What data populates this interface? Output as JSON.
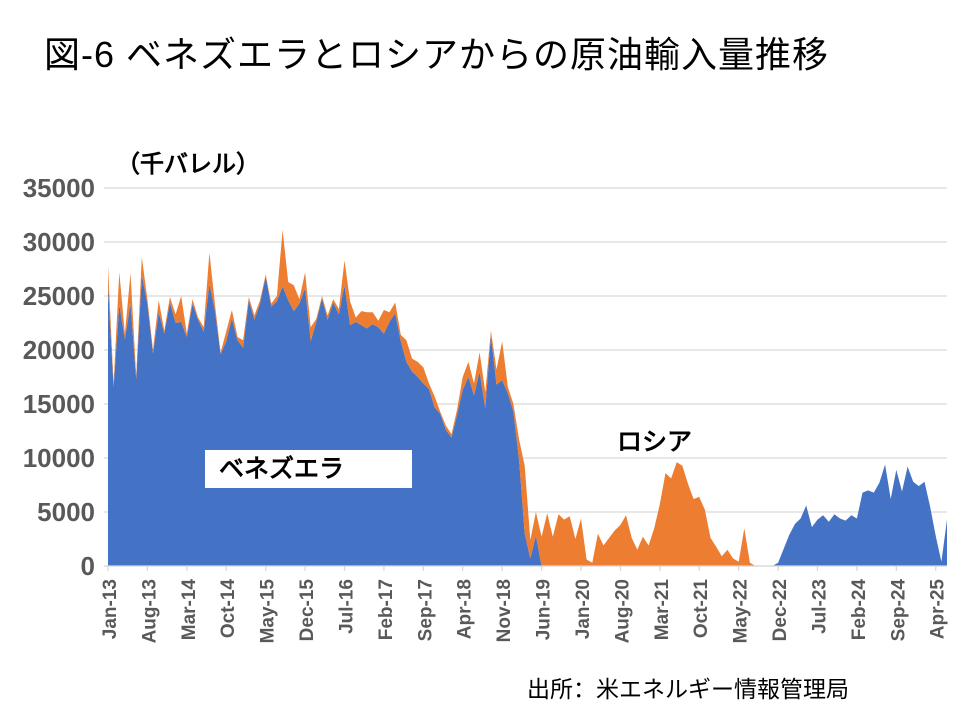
{
  "title": "図-6 ベネズエラとロシアからの原油輸入量推移",
  "unit_label": "（千バレル）",
  "source": "出所：米エネルギー情報管理局",
  "series_labels": {
    "venezuela": "ベネズエラ",
    "russia": "ロシア"
  },
  "colors": {
    "venezuela": "#4472C4",
    "russia": "#ED7D31",
    "grid": "#D9D9D9",
    "axis_text": "#595959",
    "title_text": "#000000"
  },
  "chart_data": {
    "type": "area",
    "stacked": true,
    "title": "図-6 ベネズエラとロシアからの原油輸入量推移",
    "ylabel": "（千バレル）",
    "ylim": [
      0,
      35000
    ],
    "y_tick_step": 5000,
    "grid": true,
    "legend_position": "inline-labels",
    "x_tick_every": 7,
    "x": [
      "Jan-13",
      "Feb-13",
      "Mar-13",
      "Apr-13",
      "May-13",
      "Jun-13",
      "Jul-13",
      "Aug-13",
      "Sep-13",
      "Oct-13",
      "Nov-13",
      "Dec-13",
      "Jan-14",
      "Feb-14",
      "Mar-14",
      "Apr-14",
      "May-14",
      "Jun-14",
      "Jul-14",
      "Aug-14",
      "Sep-14",
      "Oct-14",
      "Nov-14",
      "Dec-14",
      "Jan-15",
      "Feb-15",
      "Mar-15",
      "Apr-15",
      "May-15",
      "Jun-15",
      "Jul-15",
      "Aug-15",
      "Sep-15",
      "Oct-15",
      "Nov-15",
      "Dec-15",
      "Jan-16",
      "Feb-16",
      "Mar-16",
      "Apr-16",
      "May-16",
      "Jun-16",
      "Jul-16",
      "Aug-16",
      "Sep-16",
      "Oct-16",
      "Nov-16",
      "Dec-16",
      "Jan-17",
      "Feb-17",
      "Mar-17",
      "Apr-17",
      "May-17",
      "Jun-17",
      "Jul-17",
      "Aug-17",
      "Sep-17",
      "Oct-17",
      "Nov-17",
      "Dec-17",
      "Jan-18",
      "Feb-18",
      "Mar-18",
      "Apr-18",
      "May-18",
      "Jun-18",
      "Jul-18",
      "Aug-18",
      "Sep-18",
      "Oct-18",
      "Nov-18",
      "Dec-18",
      "Jan-19",
      "Feb-19",
      "Mar-19",
      "Apr-19",
      "May-19",
      "Jun-19",
      "Jul-19",
      "Aug-19",
      "Sep-19",
      "Oct-19",
      "Nov-19",
      "Dec-19",
      "Jan-20",
      "Feb-20",
      "Mar-20",
      "Apr-20",
      "May-20",
      "Jun-20",
      "Jul-20",
      "Aug-20",
      "Sep-20",
      "Oct-20",
      "Nov-20",
      "Dec-20",
      "Jan-21",
      "Feb-21",
      "Mar-21",
      "Apr-21",
      "May-21",
      "Jun-21",
      "Jul-21",
      "Aug-21",
      "Sep-21",
      "Oct-21",
      "Nov-21",
      "Dec-21",
      "Jan-22",
      "Feb-22",
      "Mar-22",
      "Apr-22",
      "May-22",
      "Jun-22",
      "Jul-22",
      "Aug-22",
      "Sep-22",
      "Oct-22",
      "Nov-22",
      "Dec-22",
      "Jan-23",
      "Feb-23",
      "Mar-23",
      "Apr-23",
      "May-23",
      "Jun-23",
      "Jul-23",
      "Aug-23",
      "Sep-23",
      "Oct-23",
      "Nov-23",
      "Dec-23",
      "Jan-24",
      "Feb-24",
      "Mar-24",
      "Apr-24",
      "May-24",
      "Jun-24",
      "Jul-24",
      "Aug-24",
      "Sep-24",
      "Oct-24",
      "Nov-24",
      "Dec-24",
      "Jan-25",
      "Feb-25",
      "Mar-25",
      "Apr-25",
      "May-25",
      "Jun-25"
    ],
    "series": [
      {
        "name": "ベネズエラ",
        "color": "#4472C4",
        "values": [
          25900,
          16600,
          24200,
          21000,
          24300,
          17300,
          26900,
          24300,
          19700,
          23500,
          21500,
          24400,
          22500,
          22600,
          21200,
          24300,
          22800,
          21700,
          26100,
          23600,
          19600,
          20800,
          22900,
          20900,
          20200,
          24600,
          22800,
          24300,
          26800,
          24000,
          24500,
          25900,
          24600,
          23600,
          24300,
          25700,
          20800,
          22600,
          24800,
          22800,
          24400,
          23300,
          26000,
          22300,
          22600,
          22300,
          22000,
          22400,
          22100,
          21500,
          22600,
          23400,
          20800,
          18900,
          18000,
          17500,
          16900,
          16400,
          14700,
          14100,
          12600,
          11900,
          14000,
          16300,
          17500,
          15800,
          18000,
          14600,
          21400,
          16800,
          17200,
          16000,
          14300,
          9800,
          3000,
          700,
          2800,
          0,
          0,
          0,
          0,
          0,
          0,
          0,
          0,
          0,
          0,
          0,
          0,
          0,
          0,
          0,
          0,
          0,
          0,
          0,
          0,
          0,
          0,
          0,
          0,
          0,
          0,
          0,
          0,
          0,
          0,
          0,
          0,
          0,
          0,
          0,
          0,
          0,
          0,
          0,
          0,
          0,
          0,
          300,
          1600,
          2900,
          3900,
          4400,
          5600,
          3600,
          4300,
          4700,
          4100,
          4800,
          4400,
          4200,
          4700,
          4400,
          6800,
          7000,
          6800,
          7700,
          9400,
          6200,
          8900,
          6900,
          9200,
          7800,
          7400,
          7800,
          5500,
          2800,
          400,
          4300
        ]
      },
      {
        "name": "ロシア",
        "color": "#ED7D31",
        "values": [
          1900,
          300,
          3000,
          500,
          2800,
          300,
          1700,
          400,
          300,
          1100,
          300,
          500,
          800,
          2400,
          300,
          400,
          200,
          400,
          2900,
          600,
          200,
          900,
          800,
          300,
          700,
          300,
          400,
          300,
          200,
          300,
          500,
          5200,
          1700,
          2400,
          400,
          1500,
          1300,
          300,
          200,
          400,
          300,
          500,
          2300,
          2200,
          400,
          1300,
          1500,
          1100,
          600,
          2200,
          900,
          1000,
          600,
          2000,
          1200,
          1400,
          1500,
          500,
          1000,
          200,
          400,
          300,
          500,
          1200,
          1400,
          1100,
          1800,
          1500,
          400,
          1400,
          3600,
          600,
          700,
          1900,
          6300,
          1700,
          2200,
          2700,
          4900,
          2700,
          4800,
          4300,
          4600,
          2500,
          4400,
          600,
          300,
          3000,
          1900,
          2600,
          3300,
          3800,
          4700,
          2600,
          1500,
          2700,
          1900,
          3500,
          5700,
          8600,
          8100,
          9600,
          9300,
          7600,
          6200,
          6400,
          5200,
          2600,
          1800,
          900,
          1500,
          700,
          400,
          3500,
          300,
          0,
          0,
          0,
          0,
          0,
          0,
          0,
          0,
          0,
          0,
          0,
          0,
          0,
          0,
          0,
          0,
          0,
          0,
          0,
          0,
          0,
          0,
          0,
          0,
          0,
          0,
          0,
          0,
          0,
          0,
          0,
          0,
          0,
          0,
          0
        ]
      }
    ]
  }
}
